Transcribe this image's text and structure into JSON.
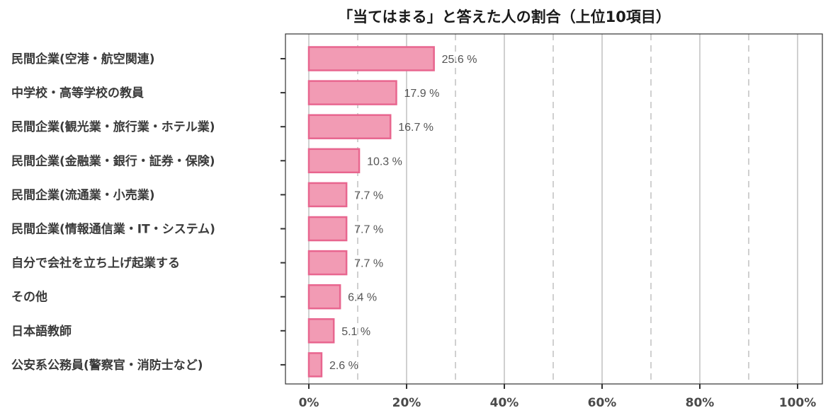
{
  "chart_data": {
    "type": "bar",
    "orientation": "horizontal",
    "title": "「当てはまる」と答えた人の割合（上位10項目）",
    "categories": [
      "民間企業(空港・航空関連)",
      "中学校・高等学校の教員",
      "民間企業(観光業・旅行業・ホテル業)",
      "民間企業(金融業・銀行・証券・保険)",
      "民間企業(流通業・小売業)",
      "民間企業(情報通信業・IT・システム)",
      "自分で会社を立ち上げ起業する",
      "その他",
      "日本語教師",
      "公安系公務員(警察官・消防士など)"
    ],
    "values": [
      25.6,
      17.9,
      16.7,
      10.3,
      7.7,
      7.7,
      7.7,
      6.4,
      5.1,
      2.6
    ],
    "value_labels": [
      "25.6 %",
      "17.9 %",
      "16.7 %",
      "10.3 %",
      "7.7 %",
      "7.7 %",
      "7.7 %",
      "6.4 %",
      "5.1 %",
      "2.6 %"
    ],
    "xlim": [
      0,
      100
    ],
    "x_ticks": [
      0,
      20,
      40,
      60,
      80,
      100
    ],
    "x_tick_labels": [
      "0%",
      "20%",
      "40%",
      "60%",
      "80%",
      "100%"
    ],
    "x_minor_gridlines": [
      10,
      30,
      50,
      70,
      90
    ],
    "xlabel": "",
    "ylabel": "",
    "grid": true,
    "legend": "none",
    "colors": {
      "bar_fill": "#f29bb4",
      "bar_stroke": "#e8668f"
    }
  }
}
